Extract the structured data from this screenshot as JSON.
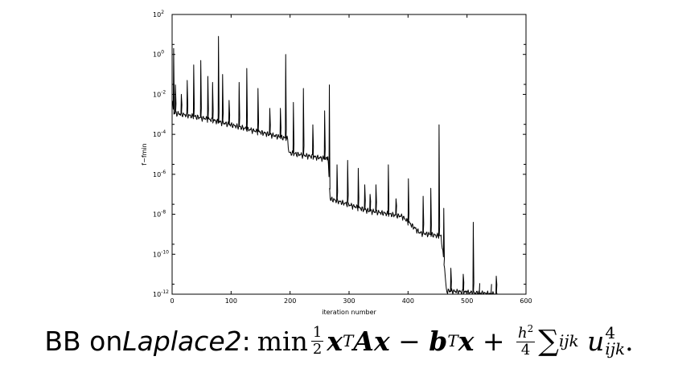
{
  "chart_data": {
    "type": "line",
    "title": "",
    "xlabel": "iteration number",
    "ylabel": "f−fmin",
    "xlim": [
      0,
      600
    ],
    "ylim": [
      1e-12,
      100
    ],
    "yscale": "log",
    "grid": false,
    "xticks": [
      0,
      100,
      200,
      300,
      400,
      500,
      600
    ],
    "yticks": [
      {
        "value": 100.0,
        "base": "10",
        "exp": "2"
      },
      {
        "value": 1.0,
        "base": "10",
        "exp": "0"
      },
      {
        "value": 0.01,
        "base": "10",
        "exp": "-2"
      },
      {
        "value": 0.0001,
        "base": "10",
        "exp": "-4"
      },
      {
        "value": 1e-06,
        "base": "10",
        "exp": "-6"
      },
      {
        "value": 1e-08,
        "base": "10",
        "exp": "-8"
      },
      {
        "value": 1e-10,
        "base": "10",
        "exp": "-10"
      },
      {
        "value": 1e-12,
        "base": "10",
        "exp": "-12"
      }
    ],
    "series": [
      {
        "color": "#000000",
        "baseline": [
          [
            0,
            0.005
          ],
          [
            3,
            0.0012
          ],
          [
            60,
            0.0006
          ],
          [
            130,
            0.00018
          ],
          [
            196,
            6e-05
          ],
          [
            198,
            1.2e-05
          ],
          [
            262,
            6e-06
          ],
          [
            264,
            9e-06
          ],
          [
            268,
            6e-08
          ],
          [
            330,
            1.6e-08
          ],
          [
            390,
            8e-09
          ],
          [
            420,
            1.2e-09
          ],
          [
            456,
            8e-10
          ],
          [
            462,
            2e-11
          ],
          [
            465,
            1.5e-12
          ],
          [
            550,
            1e-12
          ]
        ],
        "spikes": [
          {
            "x": 2,
            "y": 2.0
          },
          {
            "x": 5,
            "y": 0.03
          },
          {
            "x": 15,
            "y": 0.01
          },
          {
            "x": 25,
            "y": 0.05
          },
          {
            "x": 36,
            "y": 0.3
          },
          {
            "x": 48,
            "y": 0.5
          },
          {
            "x": 60,
            "y": 0.08
          },
          {
            "x": 68,
            "y": 0.04
          },
          {
            "x": 78,
            "y": 8.0
          },
          {
            "x": 85,
            "y": 0.1
          },
          {
            "x": 96,
            "y": 0.005
          },
          {
            "x": 113,
            "y": 0.04
          },
          {
            "x": 126,
            "y": 0.2
          },
          {
            "x": 145,
            "y": 0.02
          },
          {
            "x": 165,
            "y": 0.002
          },
          {
            "x": 183,
            "y": 0.002
          },
          {
            "x": 192,
            "y": 1.0
          },
          {
            "x": 205,
            "y": 0.004
          },
          {
            "x": 222,
            "y": 0.02
          },
          {
            "x": 238,
            "y": 0.0003
          },
          {
            "x": 258,
            "y": 0.0015
          },
          {
            "x": 266,
            "y": 0.03
          },
          {
            "x": 279,
            "y": 3e-06
          },
          {
            "x": 297,
            "y": 5e-06
          },
          {
            "x": 315,
            "y": 2e-06
          },
          {
            "x": 326,
            "y": 3e-07
          },
          {
            "x": 335,
            "y": 1e-07
          },
          {
            "x": 345,
            "y": 3e-07
          },
          {
            "x": 366,
            "y": 3e-06
          },
          {
            "x": 379,
            "y": 6e-08
          },
          {
            "x": 400,
            "y": 6e-07
          },
          {
            "x": 425,
            "y": 8e-08
          },
          {
            "x": 438,
            "y": 2e-07
          },
          {
            "x": 452,
            "y": 0.0003
          },
          {
            "x": 460,
            "y": 2e-08
          },
          {
            "x": 472,
            "y": 2e-11
          },
          {
            "x": 493,
            "y": 1e-11
          },
          {
            "x": 510,
            "y": 4e-09
          },
          {
            "x": 520,
            "y": 1e-12
          },
          {
            "x": 540,
            "y": 1e-12
          },
          {
            "x": 549,
            "y": 8e-12
          }
        ]
      }
    ]
  },
  "caption": {
    "prefix": "BB on ",
    "name": "Laplace2",
    "colon": ":"
  }
}
